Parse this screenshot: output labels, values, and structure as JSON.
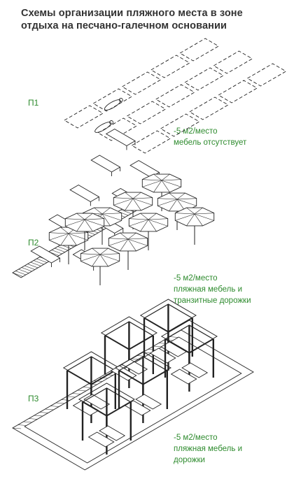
{
  "title": "Схемы организации пляжного места в зоне отдыха на песчано-галечном основании",
  "schemes": [
    {
      "label": "П1",
      "notes": [
        "-5 м2/место",
        "мебель отсутствует"
      ]
    },
    {
      "label": "П2",
      "notes": [
        "-5 м2/место",
        "пляжная мебель и",
        "транзитные дорожки"
      ]
    },
    {
      "label": "П3",
      "notes": [
        "-5 м2/место",
        "пляжная мебель и",
        "дорожки"
      ]
    }
  ],
  "colors": {
    "label_green": "#2e8b2e",
    "title": "#333333",
    "line": "#222222"
  }
}
